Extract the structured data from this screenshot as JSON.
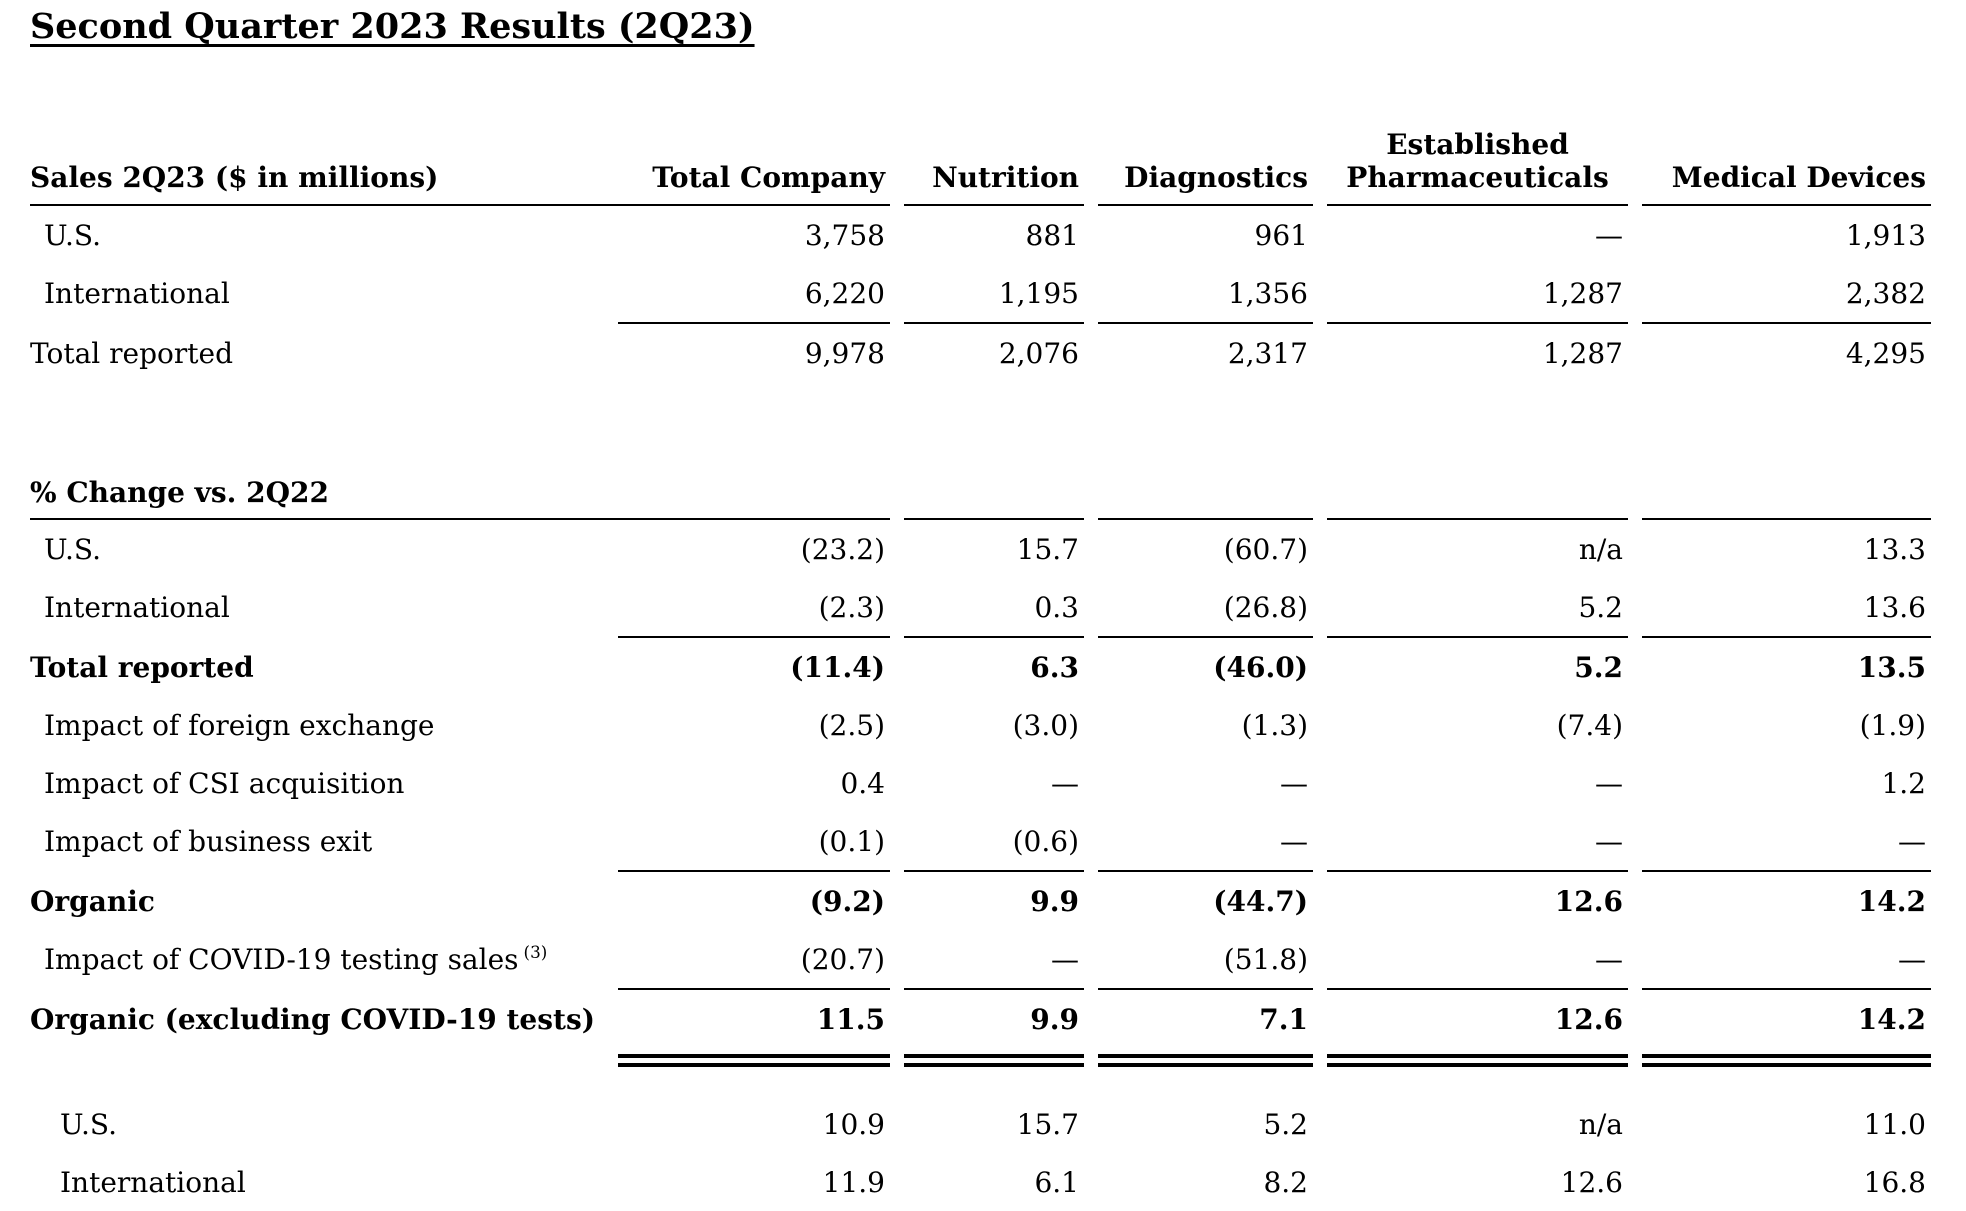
{
  "page": {
    "title": "Second Quarter 2023 Results (2Q23)"
  },
  "columns": {
    "total_company": "Total Company",
    "nutrition": "Nutrition",
    "diagnostics": "Diagnostics",
    "established_pharma_top": "Established",
    "established_pharma_bottom": "Pharmaceuticals",
    "medical_devices": "Medical Devices"
  },
  "sales": {
    "header_label": "Sales 2Q23 ($ in millions)",
    "rows": [
      {
        "label": "U.S.",
        "values": [
          "3,758",
          "881",
          "961",
          "—",
          "1,913"
        ]
      },
      {
        "label": "International",
        "values": [
          "6,220",
          "1,195",
          "1,356",
          "1,287",
          "2,382"
        ]
      },
      {
        "label": "Total reported",
        "values": [
          "9,978",
          "2,076",
          "2,317",
          "1,287",
          "4,295"
        ]
      }
    ]
  },
  "pct": {
    "section_label": "% Change vs. 2Q22",
    "rows": [
      {
        "label": "U.S.",
        "values": [
          "(23.2)",
          "15.7",
          "(60.7)",
          "n/a",
          "13.3"
        ]
      },
      {
        "label": "International",
        "values": [
          "(2.3)",
          "0.3",
          "(26.8)",
          "5.2",
          "13.6"
        ]
      },
      {
        "label": "Total reported",
        "values": [
          "(11.4)",
          "6.3",
          "(46.0)",
          "5.2",
          "13.5"
        ]
      },
      {
        "label": "Impact of foreign exchange",
        "values": [
          "(2.5)",
          "(3.0)",
          "(1.3)",
          "(7.4)",
          "(1.9)"
        ]
      },
      {
        "label": "Impact of CSI acquisition",
        "values": [
          "0.4",
          "—",
          "—",
          "—",
          "1.2"
        ]
      },
      {
        "label": "Impact of business exit",
        "values": [
          "(0.1)",
          "(0.6)",
          "—",
          "—",
          "—"
        ]
      },
      {
        "label": "Organic",
        "values": [
          "(9.2)",
          "9.9",
          "(44.7)",
          "12.6",
          "14.2"
        ]
      },
      {
        "label": "Impact of COVID-19 testing sales",
        "footnote": "(3)",
        "values": [
          "(20.7)",
          "—",
          "(51.8)",
          "—",
          "—"
        ]
      },
      {
        "label": "Organic (excluding COVID-19 tests)",
        "values": [
          "11.5",
          "9.9",
          "7.1",
          "12.6",
          "14.2"
        ]
      }
    ]
  },
  "organic_detail": {
    "rows": [
      {
        "label": "U.S.",
        "values": [
          "10.9",
          "15.7",
          "5.2",
          "n/a",
          "11.0"
        ]
      },
      {
        "label": "International",
        "values": [
          "11.9",
          "6.1",
          "8.2",
          "12.6",
          "16.8"
        ]
      }
    ]
  }
}
